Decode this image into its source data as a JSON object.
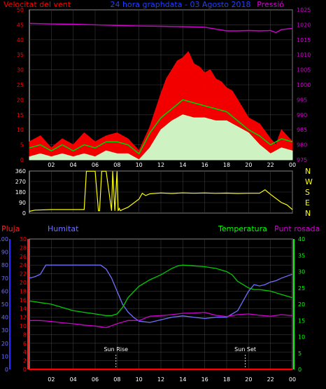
{
  "header": {
    "wind_label": "Velocitat del vent",
    "title": "24 hora graphdata - 03 Agosto 2018",
    "pressure_label": "Pressió"
  },
  "colors": {
    "background": "#000000",
    "grid": "#3a3a3a",
    "frame": "#d0d0d0",
    "wind_gust": "#ff0000",
    "wind_avg": "#00d000",
    "wind_min": "#ccffcc",
    "pressure": "#d000d0",
    "direction": "#ffff00",
    "rain": "#ff0000",
    "humidity": "#7070ff",
    "temperature": "#00cc00",
    "dew_point": "#d000d0",
    "rain_axis": "#ff2020",
    "humidity_axis": "#3030ff",
    "temperature_axis": "#00ff00",
    "title_blue": "#2040ff"
  },
  "chart_data": [
    {
      "type": "line",
      "name": "wind-and-pressure",
      "x_ticks": [
        "02",
        "04",
        "06",
        "08",
        "10",
        "12",
        "14",
        "16",
        "18",
        "20",
        "22",
        "00"
      ],
      "y_left": {
        "ticks": [
          0,
          5,
          10,
          15,
          20,
          25,
          30,
          35,
          40,
          45,
          50
        ],
        "range": [
          0,
          50
        ]
      },
      "y_right": {
        "ticks": [
          975,
          980,
          985,
          990,
          995,
          1000,
          1005,
          1010,
          1015,
          1020,
          1025
        ],
        "range": [
          975,
          1025
        ]
      },
      "x_range_hours": [
        0,
        24
      ],
      "series": [
        {
          "name": "Velocitat del vent",
          "axis": "left",
          "kind": "gust",
          "x": [
            0,
            1,
            2,
            3,
            4,
            5,
            6,
            7,
            8,
            9,
            10,
            11,
            12,
            12.5,
            13,
            13.5,
            14,
            14.5,
            15,
            15.5,
            16,
            16.5,
            17,
            17.5,
            18,
            18.5,
            19,
            20,
            21,
            22,
            22.5,
            23,
            24
          ],
          "y": [
            6,
            8,
            4,
            7,
            5,
            9,
            6,
            8,
            9,
            7,
            3,
            11,
            22,
            27,
            30,
            33,
            34,
            36,
            32,
            31,
            29,
            30,
            27,
            26,
            24,
            23,
            20,
            14,
            12,
            7,
            5,
            10,
            6
          ]
        },
        {
          "kind": "avg",
          "axis": "left",
          "x": [
            0,
            1,
            2,
            3,
            4,
            5,
            6,
            7,
            8,
            9,
            10,
            11,
            12,
            13,
            14,
            15,
            16,
            17,
            18,
            19,
            20,
            21,
            22,
            23,
            24
          ],
          "y": [
            4,
            5,
            3,
            5,
            3,
            5,
            4,
            6,
            6,
            5,
            2,
            9,
            14,
            17,
            20,
            19,
            18,
            17,
            16,
            13,
            10,
            8,
            5,
            7,
            6
          ]
        },
        {
          "kind": "min",
          "axis": "left",
          "x": [
            0,
            1,
            2,
            3,
            4,
            5,
            6,
            7,
            8,
            9,
            10,
            11,
            12,
            13,
            14,
            15,
            16,
            17,
            18,
            19,
            20,
            21,
            22,
            23,
            24
          ],
          "y": [
            1,
            2,
            1,
            2,
            1,
            2,
            1,
            3,
            2,
            2,
            0,
            4,
            10,
            13,
            15,
            14,
            14,
            13,
            13,
            11,
            9,
            5,
            2,
            4,
            3
          ]
        },
        {
          "name": "Pressió",
          "axis": "right",
          "x": [
            0,
            2,
            4,
            6,
            8,
            10,
            12,
            14,
            16,
            17,
            18,
            19,
            20,
            21,
            22,
            22.5,
            23,
            24
          ],
          "y": [
            1020.5,
            1020.3,
            1020.2,
            1020.0,
            1019.8,
            1019.6,
            1019.5,
            1019.4,
            1019.2,
            1018.6,
            1018.0,
            1018.0,
            1018.1,
            1018.0,
            1018.1,
            1017.4,
            1018.4,
            1018.8
          ]
        }
      ]
    },
    {
      "type": "line",
      "name": "wind-direction",
      "x_range_hours": [
        0,
        24
      ],
      "y_left": {
        "ticks": [
          0,
          90,
          180,
          270,
          360
        ],
        "range": [
          0,
          360
        ]
      },
      "y_right_labels": [
        "N",
        "W",
        "S",
        "E",
        "N"
      ],
      "series": [
        {
          "kind": "direction",
          "x": [
            0,
            0.5,
            2,
            5,
            5.2,
            5.5,
            6,
            6.3,
            6.4,
            6.6,
            7,
            7.5,
            7.6,
            7.8,
            8,
            8.1,
            8.2,
            8.3,
            8.5,
            9,
            10,
            10.3,
            10.6,
            11,
            12,
            13,
            14,
            15,
            16,
            17,
            18,
            19,
            20,
            21,
            21.5,
            22,
            23,
            23.5,
            24
          ],
          "y": [
            15,
            25,
            30,
            30,
            358,
            358,
            358,
            20,
            20,
            358,
            358,
            20,
            358,
            20,
            358,
            20,
            40,
            20,
            30,
            50,
            120,
            170,
            150,
            165,
            172,
            168,
            173,
            170,
            172,
            169,
            171,
            168,
            170,
            170,
            200,
            160,
            90,
            70,
            30
          ]
        }
      ]
    },
    {
      "type": "line",
      "name": "temperature-humidity",
      "x_range_hours": [
        0,
        24
      ],
      "y_rain": {
        "label": "Pluja",
        "ticks": [
          0,
          2,
          4,
          6,
          8,
          10,
          12,
          14,
          16,
          18,
          20,
          22,
          24,
          26,
          28,
          30
        ],
        "range": [
          0,
          30
        ]
      },
      "y_humidity": {
        "label": "Humitat",
        "ticks": [
          0,
          10,
          20,
          30,
          40,
          50,
          60,
          70,
          80,
          90,
          100
        ],
        "range": [
          0,
          100
        ]
      },
      "y_temp": {
        "ticks": [
          0,
          5,
          10,
          15,
          20,
          25,
          30,
          35,
          40
        ],
        "range": [
          0,
          40
        ]
      },
      "right_labels": [
        "Temperatura",
        "Punt rosada"
      ],
      "annotations": [
        {
          "text": "Sun Rise",
          "x": 7.9
        },
        {
          "text": "Sun Set",
          "x": 19.7
        }
      ],
      "series": [
        {
          "name": "Pluja",
          "axis": "rain",
          "x": [
            0,
            24
          ],
          "y": [
            0,
            0
          ]
        },
        {
          "name": "Humitat",
          "axis": "humidity",
          "x": [
            0,
            0.5,
            1,
            1.5,
            2,
            4,
            6,
            6.5,
            7,
            7.5,
            8,
            8.5,
            9,
            9.5,
            10,
            11,
            12,
            13,
            14,
            15,
            16,
            17,
            18,
            19,
            20,
            20.5,
            21,
            21.5,
            22,
            22.5,
            23,
            24
          ],
          "y": [
            70,
            71,
            73,
            80,
            80,
            80,
            80,
            80,
            77,
            70,
            60,
            50,
            44,
            40,
            37,
            36,
            38,
            40,
            41,
            40,
            39,
            40,
            40,
            45,
            60,
            65,
            64,
            65,
            67,
            68,
            70,
            73
          ]
        },
        {
          "name": "Temperatura",
          "axis": "temp",
          "x": [
            0,
            1,
            2,
            3,
            4,
            5,
            6,
            7,
            7.5,
            8,
            8.5,
            9,
            10,
            11,
            12,
            12.5,
            13,
            13.5,
            14,
            16,
            17,
            18,
            18.5,
            19,
            19.5,
            20,
            20.5,
            21,
            22,
            23,
            24
          ],
          "y": [
            21,
            20.5,
            20,
            19,
            18,
            17.5,
            17,
            16.5,
            16.5,
            17,
            19,
            22,
            25.5,
            27.5,
            29,
            30,
            31,
            31.7,
            32,
            31.5,
            31,
            30,
            29,
            27,
            26,
            25,
            24.5,
            24.5,
            24,
            23,
            22
          ]
        },
        {
          "name": "Punt rosada",
          "axis": "temp",
          "x": [
            0,
            1,
            2,
            3,
            4,
            5,
            6,
            7,
            8,
            9,
            10,
            11,
            12,
            13,
            14,
            15,
            16,
            17,
            18,
            19,
            20,
            21,
            22,
            23,
            24
          ],
          "y": [
            15,
            15,
            14.7,
            14.3,
            14,
            13.6,
            13.3,
            12.8,
            14,
            15,
            15,
            16.3,
            16.5,
            16.8,
            17.2,
            17.3,
            17.5,
            16.6,
            16.2,
            16.8,
            17,
            16.6,
            16.3,
            16.8,
            16.5
          ]
        }
      ]
    }
  ]
}
